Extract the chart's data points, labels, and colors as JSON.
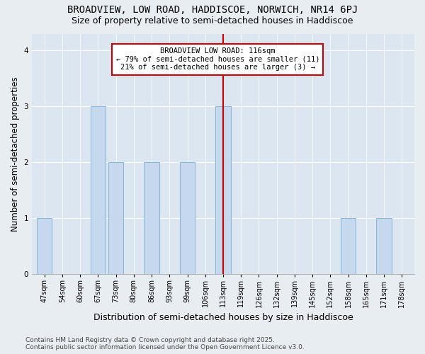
{
  "title": "BROADVIEW, LOW ROAD, HADDISCOE, NORWICH, NR14 6PJ",
  "subtitle": "Size of property relative to semi-detached houses in Haddiscoe",
  "xlabel": "Distribution of semi-detached houses by size in Haddiscoe",
  "ylabel": "Number of semi-detached properties",
  "categories": [
    "47sqm",
    "54sqm",
    "60sqm",
    "67sqm",
    "73sqm",
    "80sqm",
    "86sqm",
    "93sqm",
    "99sqm",
    "106sqm",
    "113sqm",
    "119sqm",
    "126sqm",
    "132sqm",
    "139sqm",
    "145sqm",
    "152sqm",
    "158sqm",
    "165sqm",
    "171sqm",
    "178sqm"
  ],
  "values": [
    1,
    0,
    0,
    3,
    2,
    0,
    2,
    0,
    2,
    0,
    3,
    0,
    0,
    0,
    0,
    0,
    0,
    1,
    0,
    1,
    0
  ],
  "bar_color": "#c5d8ee",
  "bar_edge_color": "#7badd4",
  "reference_line_index": 10,
  "reference_line_color": "#cc0000",
  "annotation_text": "BROADVIEW LOW ROAD: 116sqm\n← 79% of semi-detached houses are smaller (11)\n21% of semi-detached houses are larger (3) →",
  "annotation_box_color": "#ffffff",
  "annotation_box_edge_color": "#cc0000",
  "ylim": [
    0,
    4.3
  ],
  "yticks": [
    0,
    1,
    2,
    3,
    4
  ],
  "background_color": "#e8edf2",
  "plot_bg_color": "#dce6f0",
  "footer": "Contains HM Land Registry data © Crown copyright and database right 2025.\nContains public sector information licensed under the Open Government Licence v3.0.",
  "title_fontsize": 10,
  "subtitle_fontsize": 9,
  "axis_label_fontsize": 8.5,
  "tick_fontsize": 7,
  "footer_fontsize": 6.5
}
